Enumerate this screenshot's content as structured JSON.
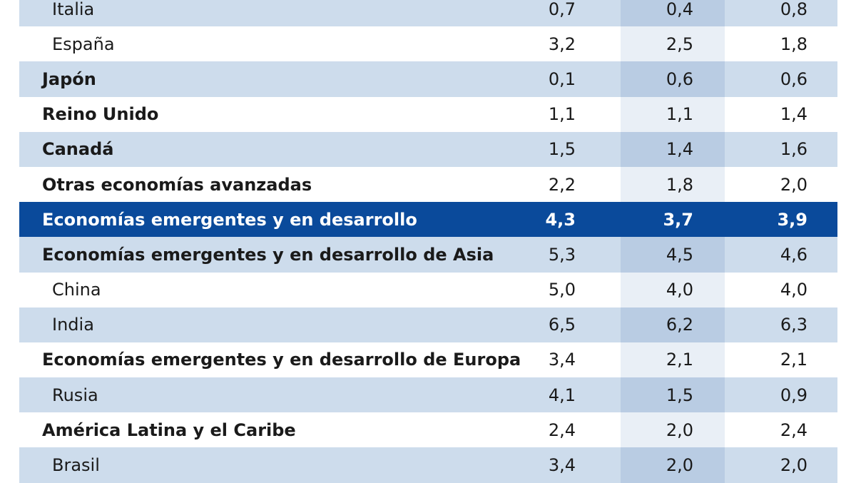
{
  "rows": [
    {
      "label": "Italia",
      "v1": "0,7",
      "v2": "0,4",
      "v3": "0,8"
    },
    {
      "label": "España",
      "v1": "3,2",
      "v2": "2,5",
      "v3": "1,8"
    },
    {
      "label": "Japón",
      "v1": "0,1",
      "v2": "0,6",
      "v3": "0,6"
    },
    {
      "label": "Reino Unido",
      "v1": "1,1",
      "v2": "1,1",
      "v3": "1,4"
    },
    {
      "label": "Canadá",
      "v1": "1,5",
      "v2": "1,4",
      "v3": "1,6"
    },
    {
      "label": "Otras economías avanzadas",
      "v1": "2,2",
      "v2": "1,8",
      "v3": "2,0"
    },
    {
      "label": "Economías emergentes y en desarrollo",
      "v1": "4,3",
      "v2": "3,7",
      "v3": "3,9"
    },
    {
      "label": "Economías emergentes y en desarrollo de Asia",
      "v1": "5,3",
      "v2": "4,5",
      "v3": "4,6"
    },
    {
      "label": "China",
      "v1": "5,0",
      "v2": "4,0",
      "v3": "4,0"
    },
    {
      "label": "India",
      "v1": "6,5",
      "v2": "6,2",
      "v3": "6,3"
    },
    {
      "label": "Economías emergentes y en desarrollo de Europa",
      "v1": "3,4",
      "v2": "2,1",
      "v3": "2,1"
    },
    {
      "label": "Rusia",
      "v1": "4,1",
      "v2": "1,5",
      "v3": "0,9"
    },
    {
      "label": "América Latina y el Caribe",
      "v1": "2,4",
      "v2": "2,0",
      "v3": "2,4"
    },
    {
      "label": "Brasil",
      "v1": "3,4",
      "v2": "2,0",
      "v3": "2,0"
    }
  ],
  "colors": {
    "row_shade": "#cddcec",
    "row_plain": "#ffffff",
    "middle_column_shade": "#b9cce3",
    "middle_column_plain": "#e9eff6",
    "highlight_row": "#0a4a9b"
  }
}
